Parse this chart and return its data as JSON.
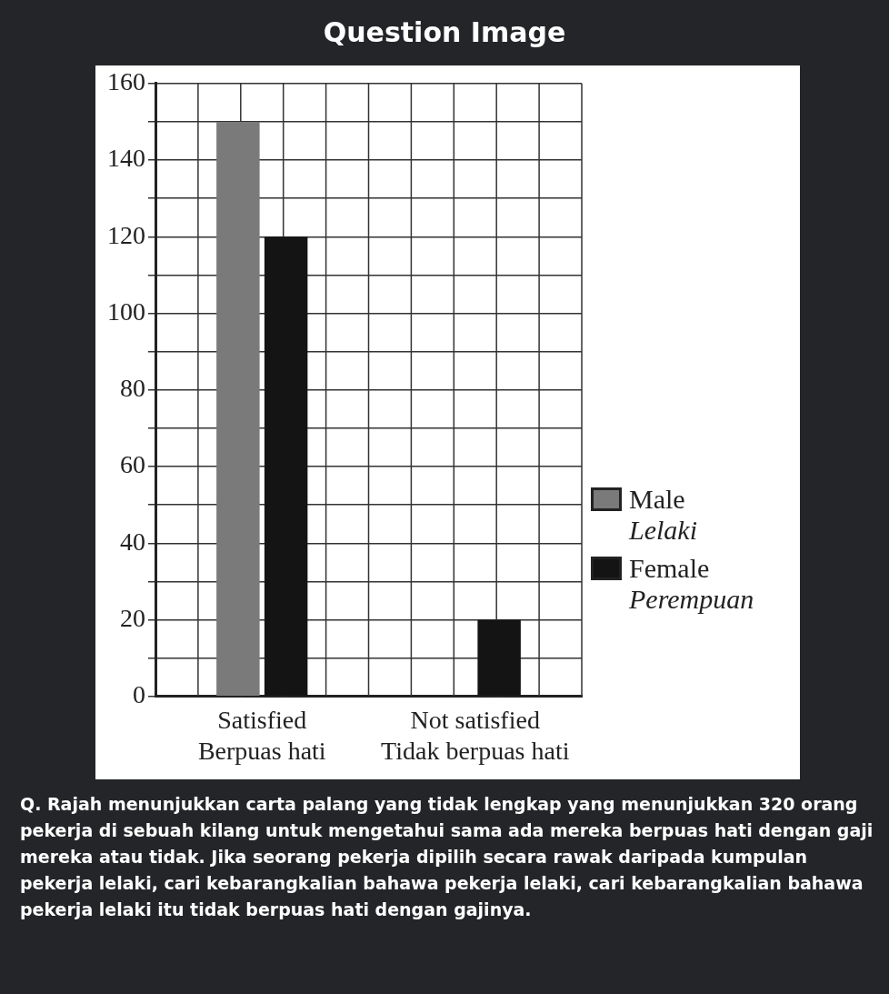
{
  "chart_data": {
    "type": "bar",
    "title": "Question Image",
    "categories": [
      "Satisfied\nBerpuas hati",
      "Not satisfied\nTidak berpuas hati"
    ],
    "series": [
      {
        "name": "Male\nLelaki",
        "color": "#7a7a7a",
        "values": [
          150,
          null
        ]
      },
      {
        "name": "Female\nPerempuan",
        "color": "#141414",
        "values": [
          120,
          20
        ]
      }
    ],
    "ylim": [
      0,
      160
    ],
    "yticks": [
      0,
      {
        "value": 10,
        "label": null
      },
      20,
      {
        "value": 30,
        "label": null
      },
      40,
      {
        "value": 50,
        "label": null
      },
      60,
      {
        "value": 70,
        "label": null
      },
      80,
      {
        "value": 90,
        "label": null
      },
      100,
      {
        "value": 110,
        "label": null
      },
      120,
      {
        "value": 130,
        "label": null
      },
      140,
      {
        "value": 150,
        "label": null
      },
      160
    ],
    "grid": true,
    "legend": "right",
    "annotations": [
      "Q. Rajah menunjukkan carta palang yang tidak lengkap yang menunjukkan 320 orang pekerja di sebuah kilang untuk mengetahui sama ada mereka berpuas hati dengan gaji mereka atau tidak. Jika seorang pekerja dipilih secara rawak daripada kumpulan pekerja lelaki, cari kebarangkalian bahawa pekerja lelaki, cari kebarangkalian bahawa pekerja lelaki itu tidak berpuas hati dengan gajinya."
    ]
  }
}
